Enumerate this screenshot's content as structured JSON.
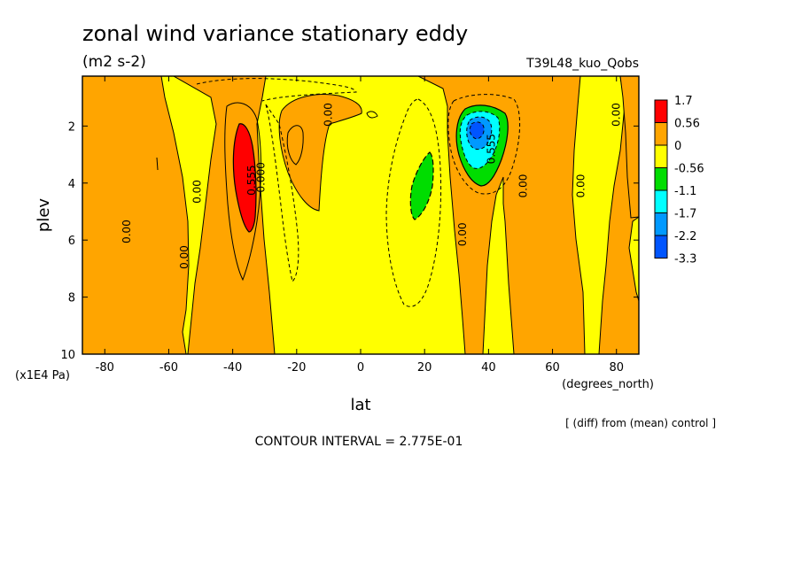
{
  "chart_data": {
    "type": "heatmap",
    "title": "zonal wind variance stationary eddy",
    "units": "(m2 s-2)",
    "run_label": "T39L48_kuo_Qobs",
    "xlabel": "lat",
    "x_units": "(degrees_north)",
    "ylabel": "plev",
    "y_units": "(x1E4 Pa)",
    "xlim": [
      -87,
      87
    ],
    "ylim": [
      10,
      0.25
    ],
    "x_ticks": [
      -80,
      -60,
      -40,
      -20,
      0,
      20,
      40,
      60,
      80
    ],
    "x_tick_labels": [
      "-80",
      "-60",
      "-40",
      "-20",
      "0",
      "20",
      "40",
      "60",
      "80"
    ],
    "y_ticks": [
      2,
      4,
      6,
      8,
      10
    ],
    "y_tick_labels": [
      "2",
      "4",
      "6",
      "8",
      "10"
    ],
    "legend": {
      "placement": "right",
      "levels": [
        "1.7",
        "0.56",
        "0",
        "-0.56",
        "-1.1",
        "-1.7",
        "-2.2",
        "-3.3"
      ],
      "colors": [
        "#ff0000",
        "#ffa500",
        "#ffff00",
        "#00dd00",
        "#00ffff",
        "#0099ff",
        "#0055ff"
      ]
    },
    "colors": {
      "positive": "#ffa500",
      "neutral": "#ffff00",
      "strong_positive": "#ff0000",
      "negative_1": "#00dd00",
      "negative_2": "#00ffff",
      "negative_3": "#0099ff",
      "negative_4": "#0055ff"
    },
    "contour_labels": [
      {
        "text": "0.00",
        "lat": -72,
        "plev": 5.7
      },
      {
        "text": "0.00",
        "lat": -54,
        "plev": 6.6
      },
      {
        "text": "0.00",
        "lat": -50,
        "plev": 4.3
      },
      {
        "text": "0.00",
        "lat": -9,
        "plev": 1.6
      },
      {
        "text": "0.00",
        "lat": 33,
        "plev": 5.8
      },
      {
        "text": "0.00",
        "lat": 52,
        "plev": 4.1
      },
      {
        "text": "0.00",
        "lat": 70,
        "plev": 4.1
      },
      {
        "text": "0.00",
        "lat": 81,
        "plev": 1.6
      },
      {
        "text": "0.555",
        "lat": -33,
        "plev": 3.9
      },
      {
        "text": "0.000",
        "lat": -30,
        "plev": 3.8
      },
      {
        "text": "0.555",
        "lat": 42,
        "plev": 2.8
      }
    ],
    "contour_interval": "CONTOUR INTERVAL = 2.775E-01",
    "note": "[ (diff) from (mean) control ]"
  }
}
